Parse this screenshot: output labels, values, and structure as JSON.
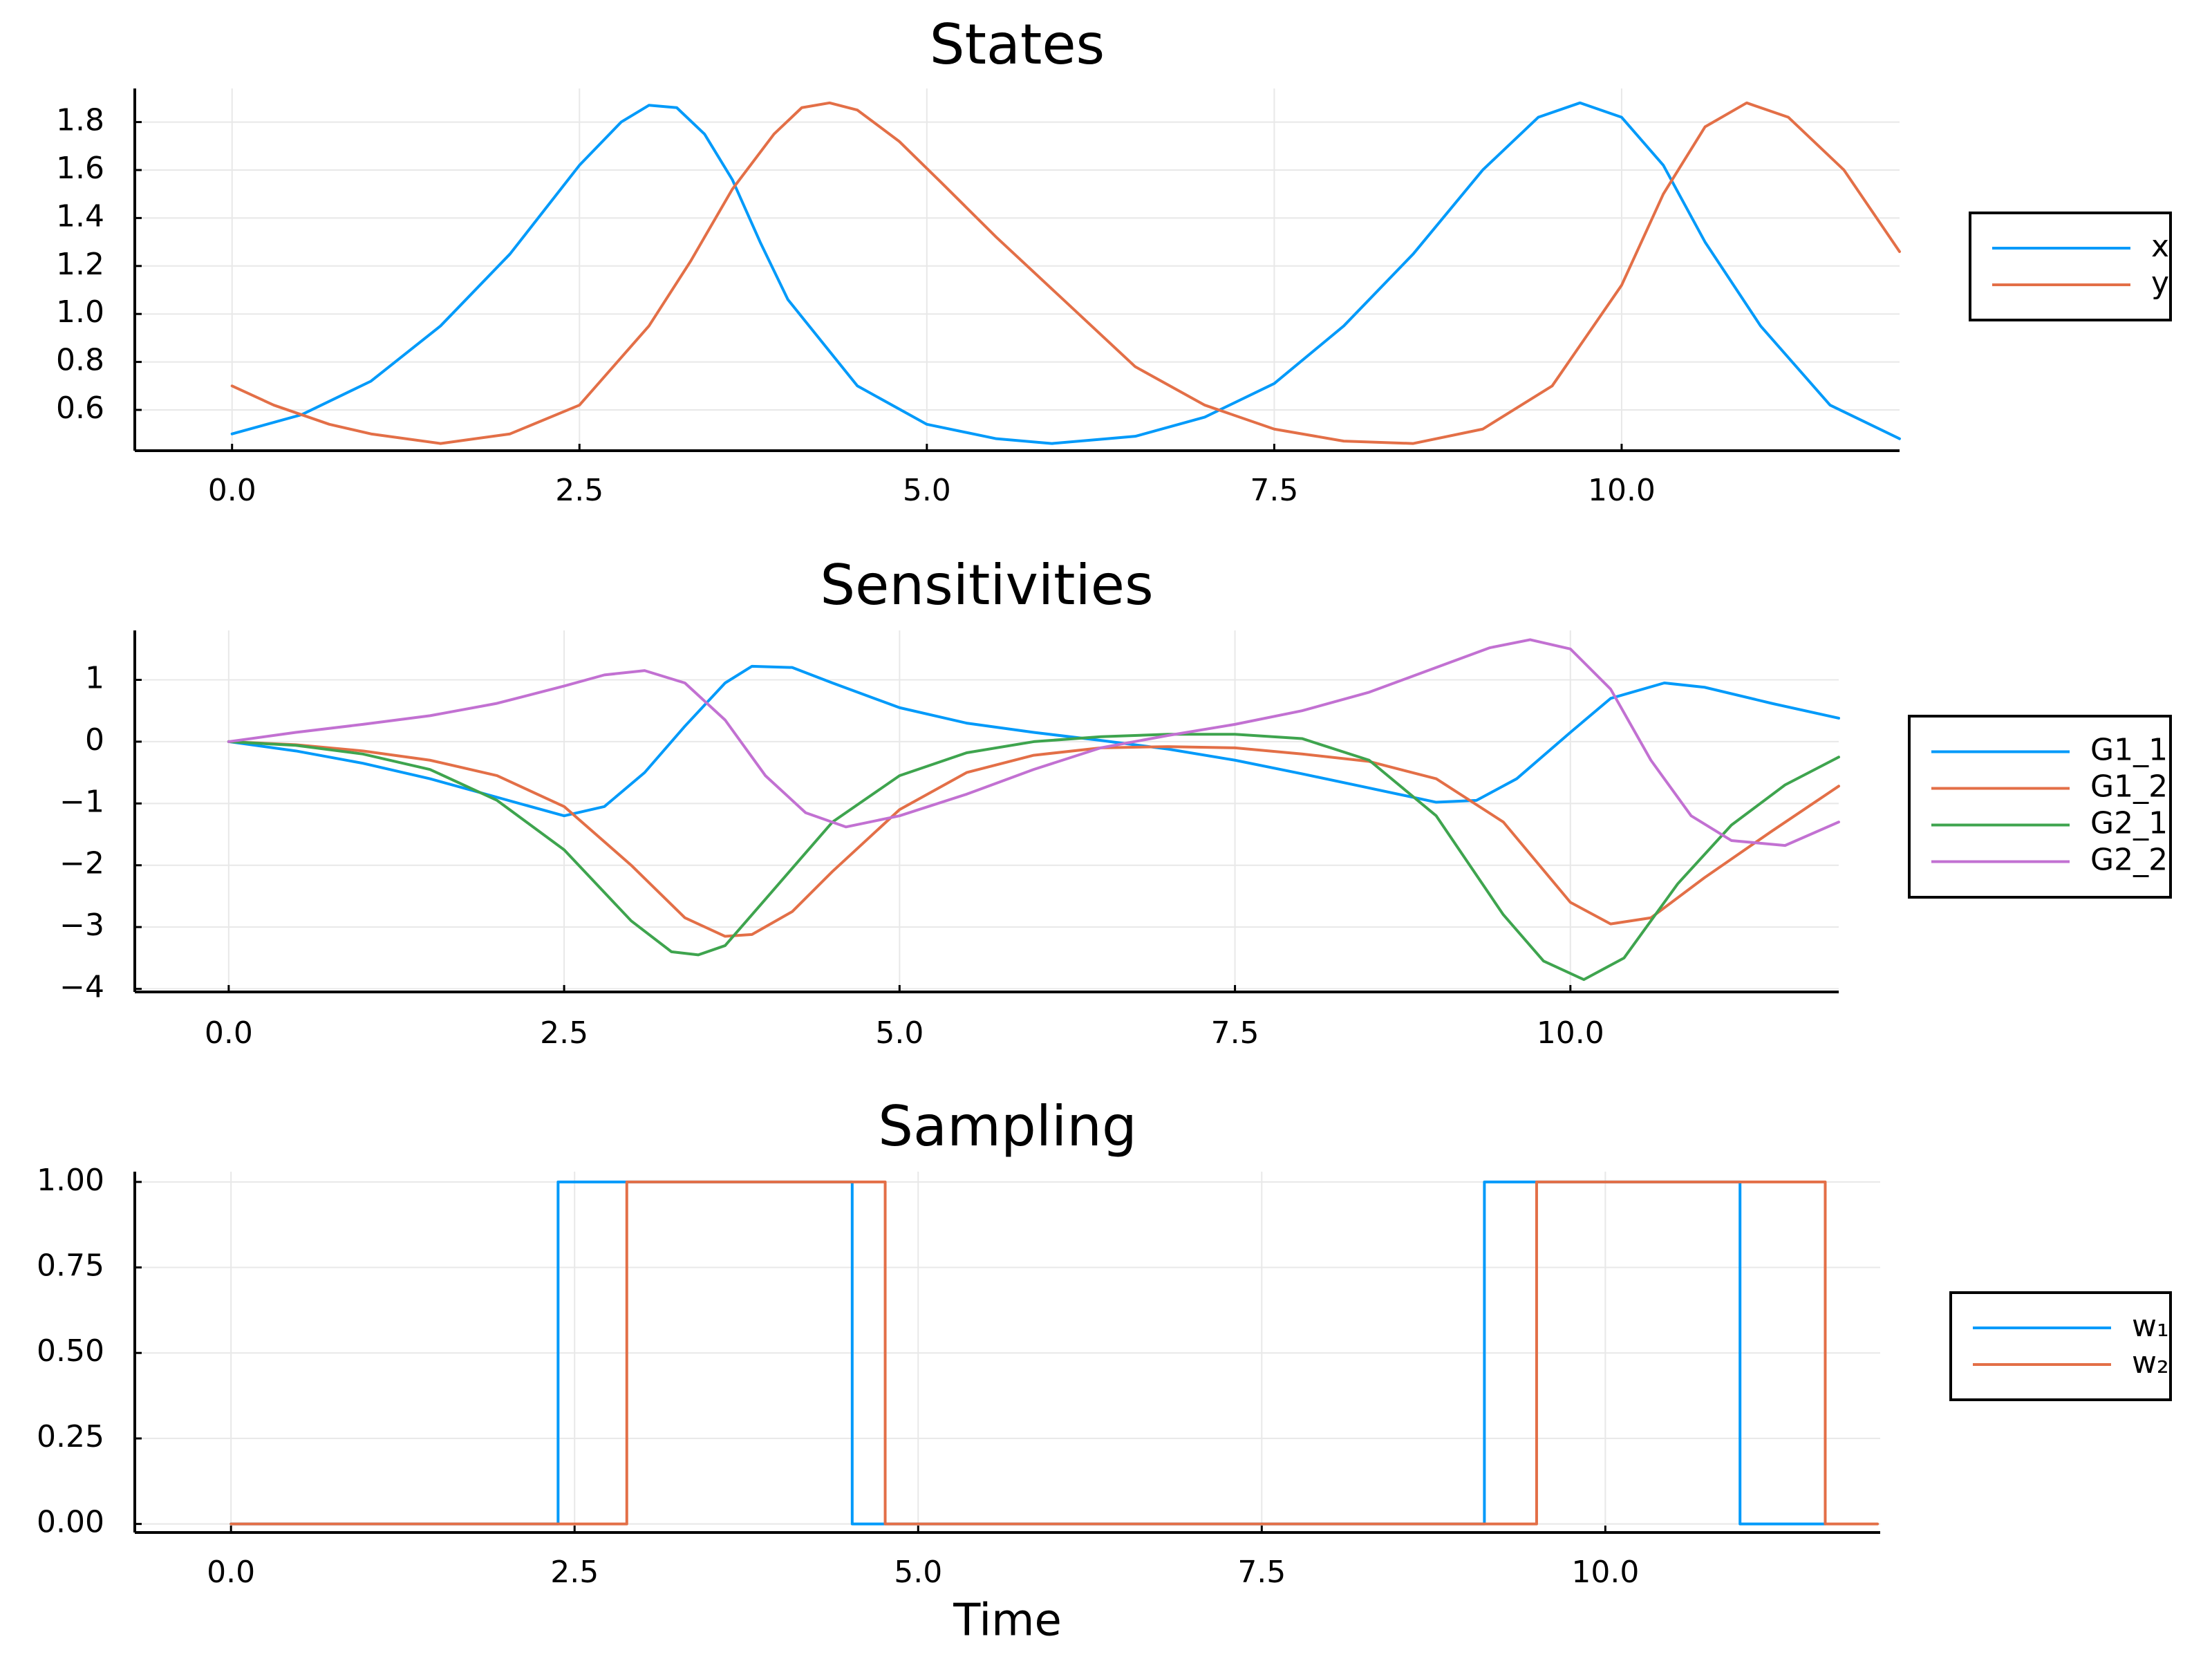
{
  "chart_data": [
    {
      "type": "line",
      "title": "States",
      "xlabel": "",
      "xlim": [
        -0.7,
        12.0
      ],
      "ylim": [
        0.43,
        1.94
      ],
      "xticks": [
        0,
        2.5,
        5,
        7.5,
        10
      ],
      "xtick_labels": [
        "0.0",
        "2.5",
        "5.0",
        "7.5",
        "10.0"
      ],
      "yticks": [
        0.6,
        0.8,
        1.0,
        1.2,
        1.4,
        1.6,
        1.8
      ],
      "ytick_labels": [
        "0.6",
        "0.8",
        "1.0",
        "1.2",
        "1.4",
        "1.6",
        "1.8"
      ],
      "grid": true,
      "legend": "outside-right",
      "series": [
        {
          "name": "x",
          "color": "#009AFA",
          "style": "line",
          "x": [
            0,
            0.5,
            1,
            1.5,
            2,
            2.5,
            2.8,
            3,
            3.2,
            3.4,
            3.6,
            3.8,
            4,
            4.5,
            5,
            5.5,
            5.9,
            6.5,
            7,
            7.5,
            8,
            8.5,
            9,
            9.4,
            9.7,
            10,
            10.3,
            10.6,
            11,
            11.5,
            12
          ],
          "y": [
            0.5,
            0.58,
            0.72,
            0.95,
            1.25,
            1.62,
            1.8,
            1.87,
            1.86,
            1.75,
            1.56,
            1.3,
            1.06,
            0.7,
            0.54,
            0.48,
            0.46,
            0.49,
            0.57,
            0.71,
            0.95,
            1.25,
            1.6,
            1.82,
            1.88,
            1.82,
            1.62,
            1.3,
            0.95,
            0.62,
            0.48
          ]
        },
        {
          "name": "y",
          "color": "#E36F47",
          "style": "line",
          "x": [
            0,
            0.3,
            0.7,
            1,
            1.5,
            2,
            2.5,
            3,
            3.3,
            3.6,
            3.9,
            4.1,
            4.3,
            4.5,
            4.8,
            5.1,
            5.5,
            6,
            6.5,
            7,
            7.5,
            8,
            8.5,
            9,
            9.5,
            10,
            10.3,
            10.6,
            10.9,
            11.2,
            11.6,
            12
          ],
          "y": [
            0.7,
            0.62,
            0.54,
            0.5,
            0.46,
            0.5,
            0.62,
            0.95,
            1.22,
            1.52,
            1.75,
            1.86,
            1.88,
            1.85,
            1.72,
            1.55,
            1.32,
            1.05,
            0.78,
            0.62,
            0.52,
            0.47,
            0.46,
            0.52,
            0.7,
            1.12,
            1.5,
            1.78,
            1.88,
            1.82,
            1.6,
            1.26
          ]
        }
      ]
    },
    {
      "type": "line",
      "title": "Sensitivities",
      "xlabel": "",
      "xlim": [
        -0.7,
        12.0
      ],
      "ylim": [
        -4.05,
        1.8
      ],
      "xticks": [
        0,
        2.5,
        5,
        7.5,
        10
      ],
      "xtick_labels": [
        "0.0",
        "2.5",
        "5.0",
        "7.5",
        "10.0"
      ],
      "yticks": [
        -4,
        -3,
        -2,
        -1,
        0,
        1
      ],
      "ytick_labels": [
        "−4",
        "−3",
        "−2",
        "−1",
        "0",
        "1"
      ],
      "grid": true,
      "legend": "outside-right",
      "series": [
        {
          "name": "G1_1",
          "color": "#009AFA",
          "style": "line",
          "x": [
            0,
            0.5,
            1,
            1.5,
            2,
            2.5,
            2.8,
            3.1,
            3.4,
            3.7,
            3.9,
            4.2,
            4.5,
            5,
            5.5,
            6,
            6.5,
            7,
            7.5,
            8,
            8.5,
            9,
            9.3,
            9.6,
            10,
            10.3,
            10.7,
            11,
            11.5,
            12
          ],
          "y": [
            0,
            -0.15,
            -0.35,
            -0.6,
            -0.9,
            -1.2,
            -1.05,
            -0.5,
            0.25,
            0.95,
            1.22,
            1.2,
            0.95,
            0.55,
            0.3,
            0.15,
            0.02,
            -0.12,
            -0.3,
            -0.52,
            -0.75,
            -0.98,
            -0.95,
            -0.6,
            0.15,
            0.7,
            0.95,
            0.88,
            0.62,
            0.38
          ]
        },
        {
          "name": "G1_2",
          "color": "#E36F47",
          "style": "line",
          "x": [
            0,
            0.5,
            1,
            1.5,
            2,
            2.5,
            3,
            3.4,
            3.7,
            3.9,
            4.2,
            4.5,
            5,
            5.5,
            6,
            6.5,
            7,
            7.5,
            8,
            8.5,
            9,
            9.5,
            10,
            10.3,
            10.6,
            11,
            11.5,
            12
          ],
          "y": [
            0,
            -0.05,
            -0.15,
            -0.3,
            -0.55,
            -1.05,
            -2,
            -2.85,
            -3.15,
            -3.12,
            -2.75,
            -2.1,
            -1.1,
            -0.5,
            -0.22,
            -0.1,
            -0.08,
            -0.1,
            -0.2,
            -0.32,
            -0.6,
            -1.3,
            -2.6,
            -2.95,
            -2.85,
            -2.2,
            -1.45,
            -0.72
          ]
        },
        {
          "name": "G2_1",
          "color": "#3EA44E",
          "style": "line",
          "x": [
            0,
            0.5,
            1,
            1.5,
            2,
            2.5,
            3,
            3.3,
            3.5,
            3.7,
            4,
            4.5,
            5,
            5.5,
            6,
            6.5,
            7,
            7.5,
            8,
            8.5,
            9,
            9.5,
            9.8,
            10.1,
            10.4,
            10.8,
            11.2,
            11.6,
            12
          ],
          "y": [
            0,
            -0.06,
            -0.2,
            -0.45,
            -0.95,
            -1.75,
            -2.9,
            -3.4,
            -3.45,
            -3.3,
            -2.55,
            -1.3,
            -0.55,
            -0.18,
            0,
            0.08,
            0.12,
            0.12,
            0.05,
            -0.3,
            -1.2,
            -2.8,
            -3.55,
            -3.85,
            -3.5,
            -2.3,
            -1.35,
            -0.7,
            -0.25
          ]
        },
        {
          "name": "G2_2",
          "color": "#C271D2",
          "style": "line",
          "x": [
            0,
            0.5,
            1,
            1.5,
            2,
            2.5,
            2.8,
            3.1,
            3.4,
            3.7,
            4,
            4.3,
            4.6,
            5,
            5.5,
            6,
            6.5,
            7,
            7.5,
            8,
            8.5,
            9,
            9.4,
            9.7,
            10,
            10.3,
            10.6,
            10.9,
            11.2,
            11.6,
            12
          ],
          "y": [
            0,
            0.15,
            0.28,
            0.42,
            0.62,
            0.9,
            1.08,
            1.15,
            0.95,
            0.35,
            -0.55,
            -1.15,
            -1.38,
            -1.2,
            -0.85,
            -0.45,
            -0.1,
            0.1,
            0.28,
            0.5,
            0.8,
            1.2,
            1.52,
            1.65,
            1.5,
            0.85,
            -0.3,
            -1.2,
            -1.6,
            -1.68,
            -1.3
          ]
        }
      ]
    },
    {
      "type": "line",
      "title": "Sampling",
      "xlabel": "Time",
      "xlim": [
        -0.7,
        12.0
      ],
      "ylim": [
        -0.025,
        1.03
      ],
      "xticks": [
        0,
        2.5,
        5,
        7.5,
        10
      ],
      "xtick_labels": [
        "0.0",
        "2.5",
        "5.0",
        "7.5",
        "10.0"
      ],
      "yticks": [
        0,
        0.25,
        0.5,
        0.75,
        1.0
      ],
      "ytick_labels": [
        "0.00",
        "0.25",
        "0.50",
        "0.75",
        "1.00"
      ],
      "grid": true,
      "legend": "outside-right",
      "series": [
        {
          "name": "w₁",
          "color": "#009AFA",
          "style": "step",
          "x": [
            0,
            2.38,
            4.52,
            9.12,
            10.98,
            11.6
          ],
          "y": [
            0,
            1,
            0,
            1,
            0,
            0
          ]
        },
        {
          "name": "w₂",
          "color": "#E36F47",
          "style": "step",
          "x": [
            0,
            2.88,
            4.76,
            9.5,
            11.6,
            11.98
          ],
          "y": [
            0,
            1,
            0,
            1,
            0,
            0
          ]
        }
      ]
    }
  ]
}
